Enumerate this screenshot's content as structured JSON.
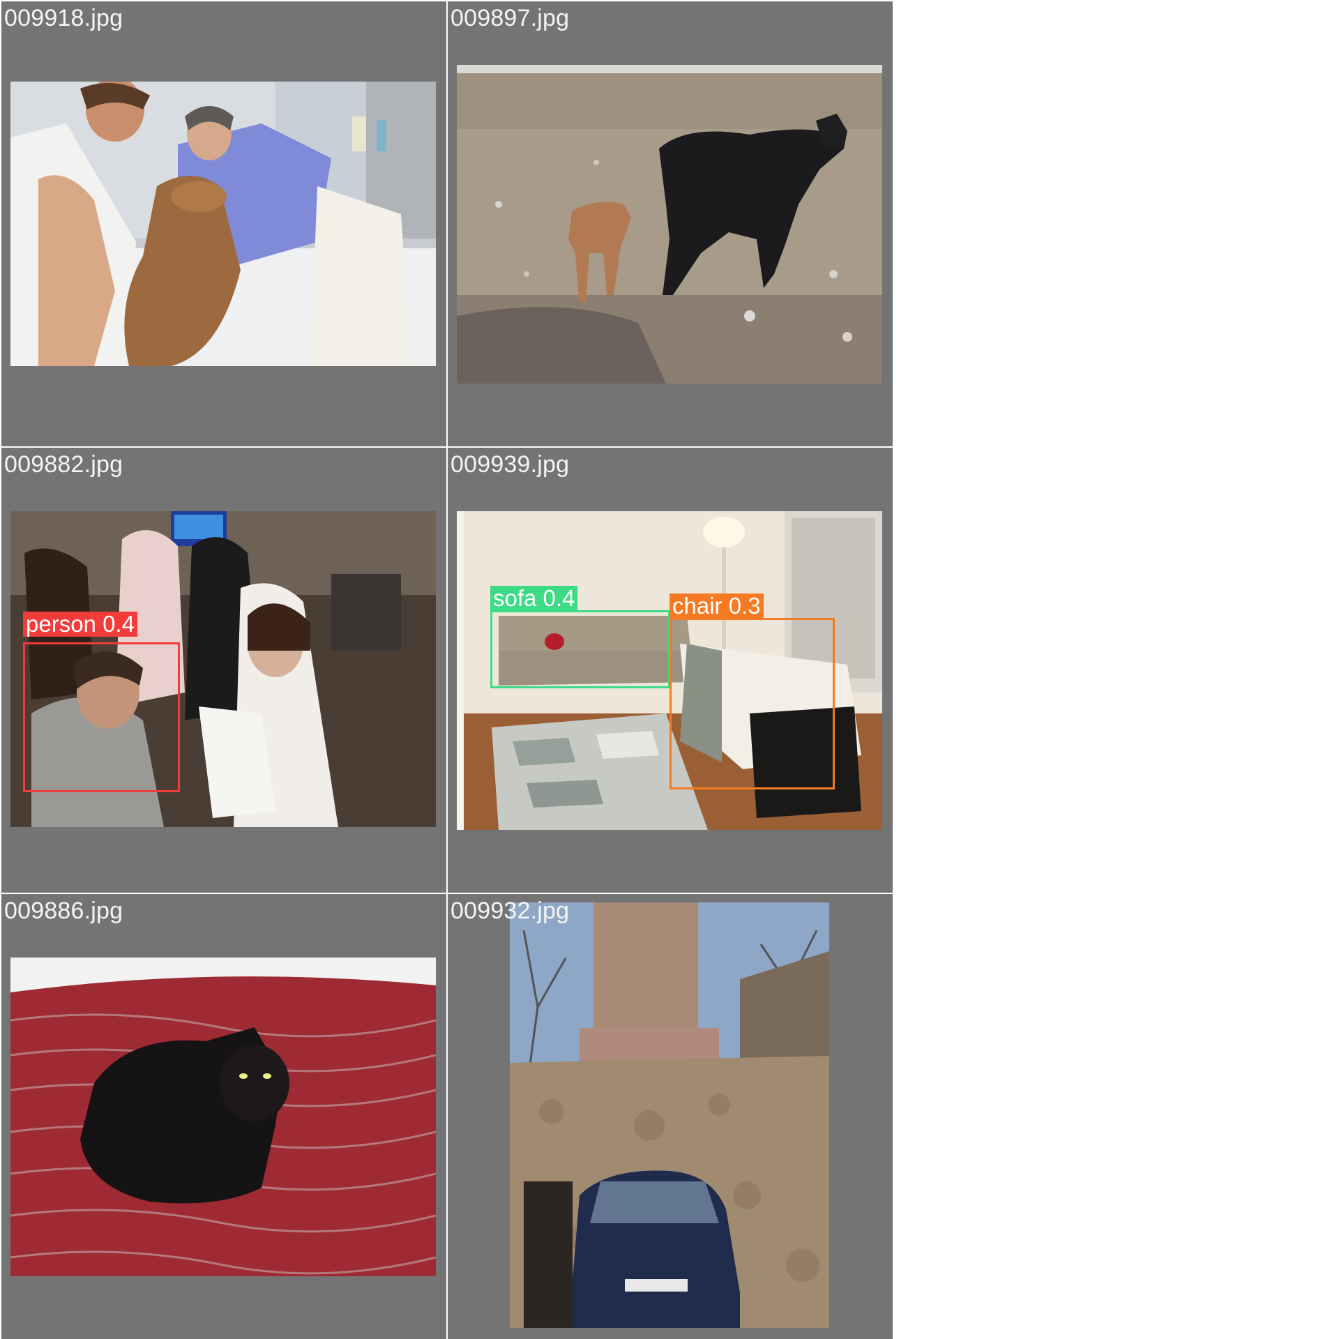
{
  "cells": [
    {
      "id": "c1",
      "filename": "009918.jpg",
      "scene": "veterinary bath with people and dog"
    },
    {
      "id": "c2",
      "filename": "009897.jpg",
      "scene": "cow and calf on rocky field"
    },
    {
      "id": "c3",
      "filename": "009882.jpg",
      "scene": "children and man in living room",
      "detections": [
        {
          "label": "person 0.4",
          "color": "#f23b3b"
        }
      ]
    },
    {
      "id": "c4",
      "filename": "009939.jpg",
      "scene": "living room with sofa and chair",
      "detections": [
        {
          "label": "sofa 0.4",
          "color": "#3ddb86"
        },
        {
          "label": "chair 0.3",
          "color": "#f47a23"
        }
      ]
    },
    {
      "id": "c5",
      "filename": "009886.jpg",
      "scene": "black cat on red bedspread"
    },
    {
      "id": "c6",
      "filename": "009932.jpg",
      "scene": "stone ruin chimney with car"
    }
  ]
}
